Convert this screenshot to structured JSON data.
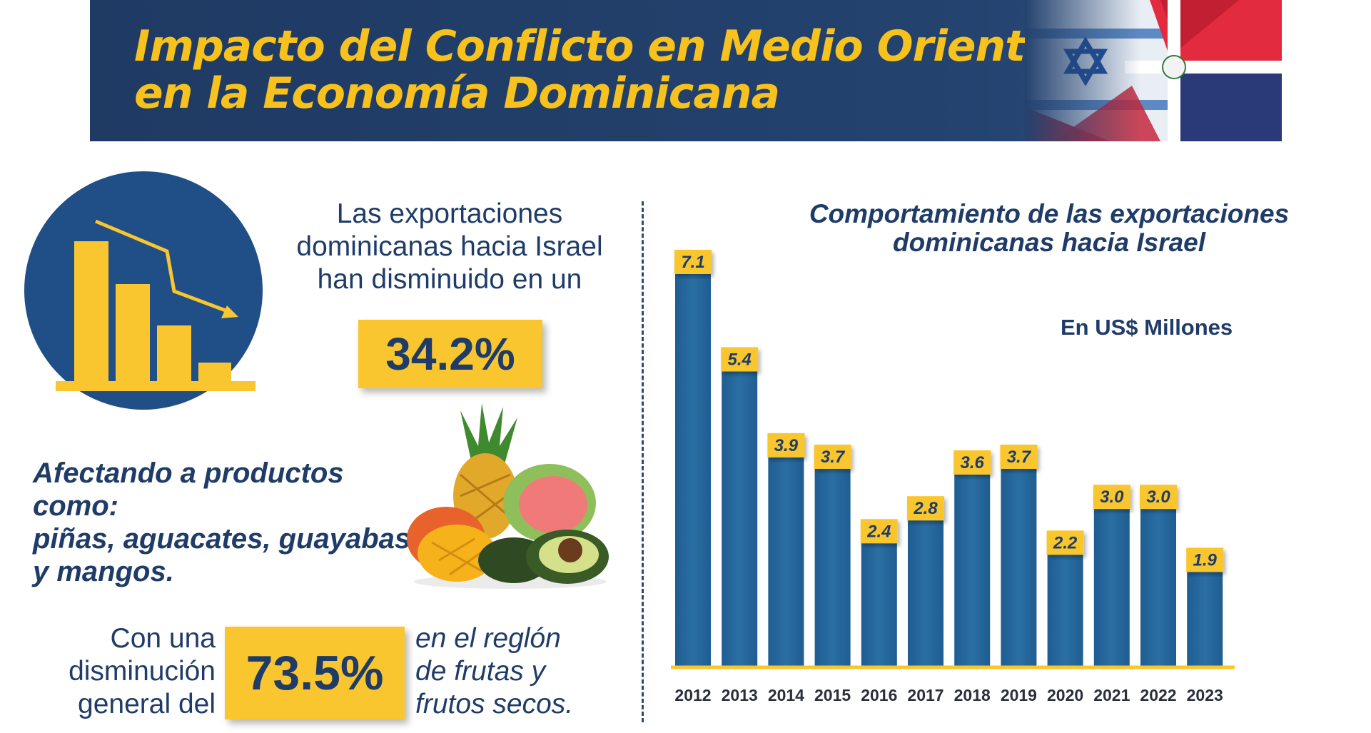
{
  "header": {
    "title_line1": "Impacto del Conflicto en Medio Oriente",
    "title_line2": "en la Economía Dominicana"
  },
  "left": {
    "intro_lines": [
      "Las exportaciones",
      "dominicanas hacia Israel",
      "han disminuido en un"
    ],
    "decrease_pct": "34.2%",
    "products_lines": [
      "Afectando a productos como:",
      "piñas, aguacates, guayabas",
      "y mangos."
    ],
    "summary_left": [
      "Con una",
      "disminución",
      "general del"
    ],
    "summary_pct": "73.5%",
    "summary_right": [
      "en el reglón",
      "de frutas y",
      "frutos secos."
    ]
  },
  "colors": {
    "navy": "#1f3c68",
    "yellow": "#f9c62f",
    "bar": "#2a6fa3"
  },
  "chart_data": {
    "type": "bar",
    "title_lines": [
      "Comportamiento de las exportaciones",
      "dominicanas hacia Israel"
    ],
    "unit": "En US$ Millones",
    "categories": [
      "2012",
      "2013",
      "2014",
      "2015",
      "2016",
      "2017",
      "2018",
      "2019",
      "2020",
      "2021",
      "2022",
      "2023"
    ],
    "values": [
      7.1,
      5.4,
      3.9,
      3.7,
      2.4,
      2.8,
      3.6,
      3.7,
      2.2,
      3.0,
      3.0,
      1.9
    ],
    "value_labels": [
      "7.1",
      "5.4",
      "3.9",
      "3.7",
      "2.4",
      "2.8",
      "3.6",
      "3.7",
      "2.2",
      "3.0",
      "3.0",
      "1.9"
    ],
    "ylim": [
      0,
      7.1
    ],
    "xlabel": "",
    "ylabel": ""
  }
}
